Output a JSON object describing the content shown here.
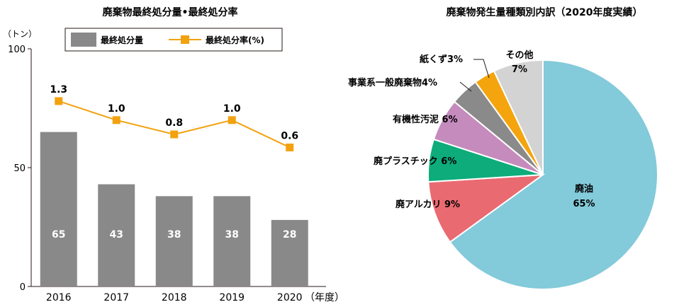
{
  "chart_data": [
    {
      "type": "bar",
      "title": "廃棄物最終処分量•最終処分率",
      "yunit": "（トン）",
      "xunit": "（年度）",
      "categories": [
        "2016",
        "2017",
        "2018",
        "2019",
        "2020"
      ],
      "ylim": [
        0,
        100
      ],
      "yticks": [
        "0",
        "50",
        "100"
      ],
      "series": [
        {
          "name": "最終処分量",
          "kind": "bar",
          "values": [
            65,
            43,
            38,
            38,
            28
          ],
          "labels": [
            "65",
            "43",
            "38",
            "38",
            "28"
          ],
          "color": "#898989"
        },
        {
          "name": "最終処分率(%)",
          "kind": "line",
          "values": [
            1.3,
            1.0,
            0.8,
            1.0,
            0.6
          ],
          "labels": [
            "1.3",
            "1.0",
            "0.8",
            "1.0",
            "0.6"
          ],
          "plot_values": [
            78,
            70,
            64,
            70,
            58.5
          ],
          "color": "#f2a20f"
        }
      ],
      "legend": "top"
    },
    {
      "type": "pie",
      "title": "廃棄物発生量種類別内訳（2020年度実績）",
      "slices": [
        {
          "label": "廃油",
          "pct": "65%",
          "value": 65,
          "color": "#83cada"
        },
        {
          "label": "廃アルカリ",
          "pct": "9%",
          "value": 9,
          "color": "#ea6a71"
        },
        {
          "label": "廃プラスチック",
          "pct": "6%",
          "value": 6,
          "color": "#0dac7a"
        },
        {
          "label": "有機性汚泥",
          "pct": "6%",
          "value": 6,
          "color": "#c58bbd"
        },
        {
          "label": "事業系一般廃棄物",
          "pct": "4%",
          "value": 4,
          "color": "#8a8a8a"
        },
        {
          "label": "紙くず",
          "pct": "3%",
          "value": 3,
          "color": "#f4a40d"
        },
        {
          "label": "その他",
          "pct": "7%",
          "value": 7,
          "color": "#d3d3d3"
        }
      ]
    }
  ]
}
